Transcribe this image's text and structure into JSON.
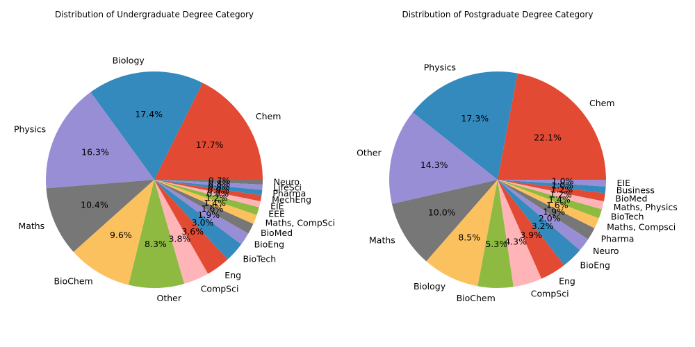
{
  "chart_data": [
    {
      "type": "pie",
      "title": "Distribution of Undergraduate Degree Category",
      "categories": [
        "Chem",
        "Biology",
        "Physics",
        "Maths",
        "BioChem",
        "Other",
        "CompSci",
        "Eng",
        "BioTech",
        "BioEng",
        "BioMed",
        "Maths, CompSci",
        "EEE",
        "EIE",
        "MechEng",
        "Pharma",
        "LifeSci",
        "Neuro"
      ],
      "values": [
        17.7,
        17.4,
        16.3,
        10.4,
        9.6,
        8.3,
        3.8,
        3.6,
        3.0,
        1.9,
        1.6,
        1.4,
        1.2,
        0.9,
        0.9,
        0.8,
        0.8,
        0.7
      ],
      "labels": [
        "17.7%",
        "17.4%",
        "16.3%",
        "10.4%",
        "9.6%",
        "8.3%",
        "3.8%",
        "3.6%",
        "3.0%",
        "1.9%",
        "1.6%",
        "1.4%",
        "1.2%",
        "0.9%",
        "0.9%",
        "0.8%",
        "0.8%",
        "0.7%"
      ],
      "colors": [
        "#E24A33",
        "#348ABD",
        "#988ED5",
        "#777777",
        "#FBC15E",
        "#8EBA42",
        "#FFB5B8",
        "#E24A33",
        "#348ABD",
        "#988ED5",
        "#777777",
        "#FBC15E",
        "#8EBA42",
        "#FFB5B8",
        "#E24A33",
        "#348ABD",
        "#988ED5",
        "#777777"
      ]
    },
    {
      "type": "pie",
      "title": "Distribution of Postgraduate Degree Category",
      "categories": [
        "Chem",
        "Physics",
        "Other",
        "Maths",
        "Biology",
        "BioChem",
        "CompSci",
        "Eng",
        "BioEng",
        "Neuro",
        "Pharma",
        "Maths, Compsci",
        "BioTech",
        "Maths, Physics",
        "BioMed",
        "Business",
        "EIE"
      ],
      "values": [
        22.1,
        17.3,
        14.3,
        10.0,
        8.5,
        5.3,
        4.3,
        3.9,
        3.2,
        2.0,
        1.9,
        1.6,
        1.4,
        1.2,
        1.2,
        1.0,
        1.0
      ],
      "labels": [
        "22.1%",
        "17.3%",
        "14.3%",
        "10.0%",
        "8.5%",
        "5.3%",
        "4.3%",
        "3.9%",
        "3.2%",
        "2.0%",
        "1.9%",
        "1.6%",
        "1.4%",
        "1.2%",
        "1.2%",
        "1.0%",
        "1.0%"
      ],
      "colors": [
        "#E24A33",
        "#348ABD",
        "#988ED5",
        "#777777",
        "#FBC15E",
        "#8EBA42",
        "#FFB5B8",
        "#E24A33",
        "#348ABD",
        "#988ED5",
        "#777777",
        "#FBC15E",
        "#8EBA42",
        "#FFB5B8",
        "#E24A33",
        "#348ABD",
        "#988ED5"
      ]
    }
  ]
}
